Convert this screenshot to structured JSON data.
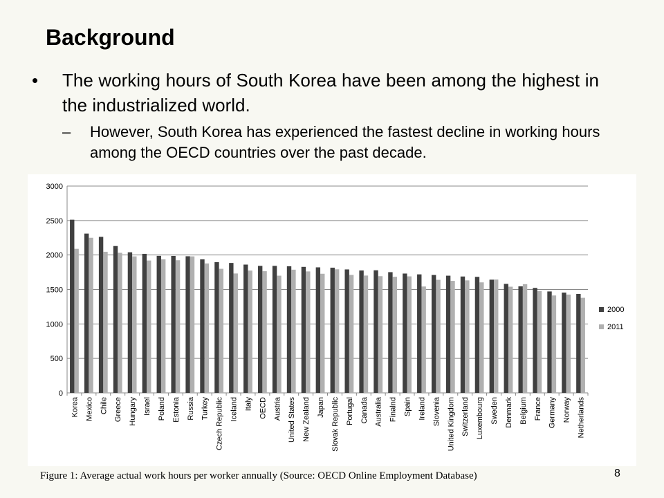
{
  "slide": {
    "title": "Background",
    "bullet_symbol": "•",
    "bullet1": "The working hours of South Korea have been among the highest in the industrialized world.",
    "dash_symbol": "–",
    "bullet2": "However, South Korea has experienced the fastest decline in working hours among the OECD countries over the past decade.",
    "caption": "Figure 1: Average actual work hours per worker annually (Source: OECD Online Employment Database)",
    "page_number": "8"
  },
  "chart_data": {
    "type": "bar",
    "categories": [
      "Korea",
      "Mexico",
      "Chile",
      "Greece",
      "Hungary",
      "Israel",
      "Poland",
      "Estonia",
      "Russia",
      "Turkey",
      "Czech Republic",
      "Iceland",
      "Italy",
      "OECD",
      "Austria",
      "United States",
      "New Zealand",
      "Japan",
      "Slovak Republic",
      "Portugal",
      "Canada",
      "Australia",
      "Finalnd",
      "Spain",
      "Ireland",
      "Slovenia",
      "United Kingdom",
      "Switzerland",
      "Luxembourg",
      "Sweden",
      "Denmark",
      "Belgium",
      "France",
      "Germany",
      "Norway",
      "Netherlands"
    ],
    "series": [
      {
        "name": "2000",
        "color": "#404040",
        "values": [
          2512,
          2311,
          2263,
          2130,
          2039,
          2017,
          1988,
          1987,
          1982,
          1937,
          1896,
          1885,
          1861,
          1842,
          1842,
          1836,
          1828,
          1821,
          1816,
          1791,
          1775,
          1778,
          1751,
          1731,
          1719,
          1710,
          1700,
          1688,
          1683,
          1642,
          1581,
          1545,
          1523,
          1471,
          1455,
          1435
        ]
      },
      {
        "name": "2011",
        "color": "#b0b0b0",
        "values": [
          2090,
          2250,
          2047,
          2032,
          1980,
          1920,
          1937,
          1924,
          1980,
          1877,
          1800,
          1732,
          1774,
          1765,
          1700,
          1787,
          1762,
          1728,
          1793,
          1711,
          1702,
          1693,
          1684,
          1690,
          1543,
          1640,
          1625,
          1632,
          1603,
          1644,
          1540,
          1577,
          1476,
          1413,
          1426,
          1379
        ]
      }
    ],
    "y_ticks": [
      "0",
      "500",
      "1000",
      "1500",
      "2000",
      "2500",
      "3000"
    ],
    "ylim": [
      0,
      3000
    ],
    "grid": true,
    "legend_position": "right"
  }
}
